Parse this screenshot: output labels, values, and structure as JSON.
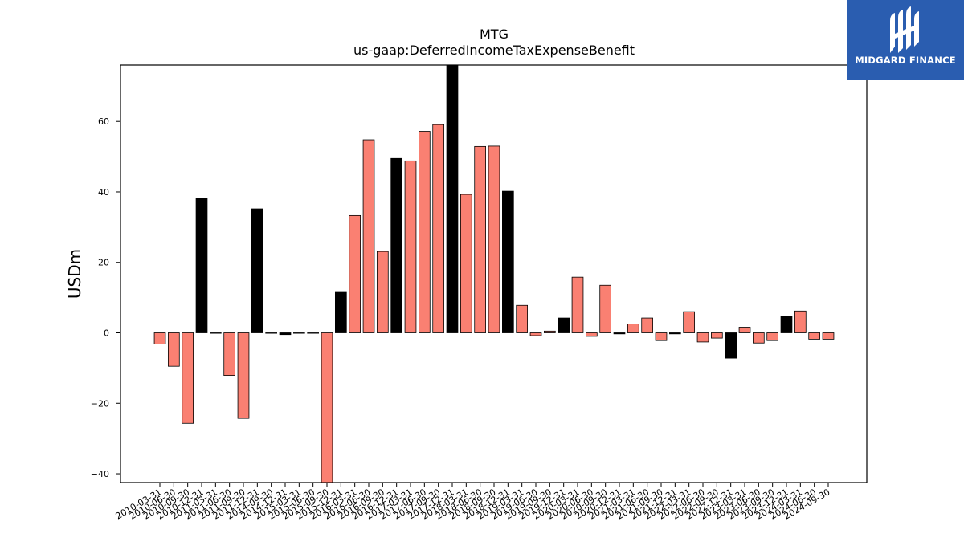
{
  "brand": {
    "name": "MIDGARD FINANCE",
    "bg_color": "#2a5db0"
  },
  "chart_data": {
    "type": "bar",
    "title": "MTG",
    "subtitle": "us-gaap:DeferredIncomeTaxExpenseBenefit",
    "ylabel": "USDm",
    "xlabel": "",
    "ylim": [
      -42.5,
      76
    ],
    "yticks": [
      -40,
      -20,
      0,
      20,
      40,
      60
    ],
    "grid": false,
    "colors": {
      "default": "#fa8072",
      "highlight": "#000000",
      "edge": "#000000"
    },
    "categories": [
      "2010-03-31",
      "2010-06-30",
      "2010-09-30",
      "2010-12-31",
      "2011-03-31",
      "2011-06-30",
      "2011-09-30",
      "2011-12-31",
      "2014-09-30",
      "2014-12-31",
      "2015-03-31",
      "2015-06-30",
      "2015-09-30",
      "2015-12-31",
      "2016-03-31",
      "2016-06-30",
      "2016-09-30",
      "2016-12-31",
      "2017-03-31",
      "2017-06-30",
      "2017-09-30",
      "2017-12-31",
      "2018-03-31",
      "2018-06-30",
      "2018-09-30",
      "2018-12-31",
      "2019-03-31",
      "2019-06-30",
      "2019-09-30",
      "2019-12-31",
      "2020-03-31",
      "2020-06-30",
      "2020-09-30",
      "2020-12-31",
      "2021-03-31",
      "2021-06-30",
      "2021-09-30",
      "2021-12-31",
      "2022-03-31",
      "2022-06-30",
      "2022-09-30",
      "2022-12-31",
      "2023-03-31",
      "2023-06-30",
      "2023-09-30",
      "2023-12-31",
      "2024-03-31",
      "2024-06-30",
      "2024-09-30"
    ],
    "values": [
      -3.2,
      -9.5,
      -25.7,
      38.2,
      0,
      -12.1,
      -24.3,
      35.2,
      0,
      -0.5,
      0,
      0,
      -42.5,
      11.5,
      33.3,
      54.8,
      23.1,
      49.5,
      48.8,
      57.2,
      59.1,
      76,
      39.3,
      52.9,
      53.0,
      40.2,
      7.8,
      -0.8,
      0.5,
      4.2,
      15.8,
      -1.0,
      13.5,
      -0.3,
      2.5,
      4.2,
      -2.2,
      -0.3,
      6.0,
      -2.6,
      -1.5,
      -7.2,
      1.6,
      -2.9,
      -2.2,
      4.7,
      6.2,
      -1.8,
      -1.8
    ],
    "highlight": [
      false,
      false,
      false,
      true,
      false,
      false,
      false,
      true,
      false,
      true,
      false,
      false,
      false,
      true,
      false,
      false,
      false,
      true,
      false,
      false,
      false,
      true,
      false,
      false,
      false,
      true,
      false,
      false,
      false,
      true,
      false,
      false,
      false,
      true,
      false,
      false,
      false,
      true,
      false,
      false,
      false,
      true,
      false,
      false,
      false,
      true,
      false,
      false,
      false
    ]
  }
}
